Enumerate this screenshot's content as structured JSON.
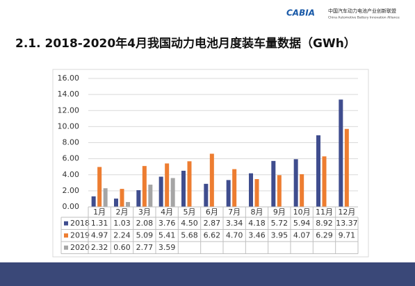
{
  "header": {
    "logo": "CABIA",
    "org_cn": "中国汽车动力电池产业创新联盟",
    "org_en": "China Automotive Battery Innovation Alliance"
  },
  "chart_data": {
    "type": "bar",
    "title": "2.1. 2018-2020年4月我国动力电池月度装车量数据（GWh）",
    "categories": [
      "1月",
      "2月",
      "3月",
      "4月",
      "5月",
      "6月",
      "7月",
      "8月",
      "9月",
      "10月",
      "11月",
      "12月"
    ],
    "series": [
      {
        "name": "2018",
        "color": "#3f4d8e",
        "values": [
          1.31,
          1.03,
          2.08,
          3.76,
          4.5,
          2.87,
          3.34,
          4.18,
          5.72,
          5.94,
          8.92,
          13.37
        ],
        "value_labels": [
          "1.31",
          "1.03",
          "2.08",
          "3.76",
          "4.50",
          "2.87",
          "3.34",
          "4.18",
          "5.72",
          "5.94",
          "8.92",
          "13.37"
        ]
      },
      {
        "name": "2019",
        "color": "#ed7d31",
        "values": [
          4.97,
          2.24,
          5.09,
          5.41,
          5.68,
          6.62,
          4.7,
          3.46,
          3.95,
          4.07,
          6.29,
          9.71
        ],
        "value_labels": [
          "4.97",
          "2.24",
          "5.09",
          "5.41",
          "5.68",
          "6.62",
          "4.70",
          "3.46",
          "3.95",
          "4.07",
          "6.29",
          "9.71"
        ]
      },
      {
        "name": "2020",
        "color": "#a5a5a5",
        "values": [
          2.32,
          0.6,
          2.77,
          3.59,
          null,
          null,
          null,
          null,
          null,
          null,
          null,
          null
        ],
        "value_labels": [
          "2.32",
          "0.60",
          "2.77",
          "3.59",
          null,
          null,
          null,
          null,
          null,
          null,
          null,
          null
        ]
      }
    ],
    "ylim": [
      0,
      16
    ],
    "yticks": [
      {
        "value": 0,
        "label": "0.00"
      },
      {
        "value": 2,
        "label": "2.00"
      },
      {
        "value": 4,
        "label": "4.00"
      },
      {
        "value": 6,
        "label": "6.00"
      },
      {
        "value": 8,
        "label": "8.00"
      },
      {
        "value": 10,
        "label": "10.00"
      },
      {
        "value": 12,
        "label": "12.00"
      },
      {
        "value": 14,
        "label": "14.00"
      },
      {
        "value": 16,
        "label": "16.00"
      }
    ],
    "grid": true
  }
}
